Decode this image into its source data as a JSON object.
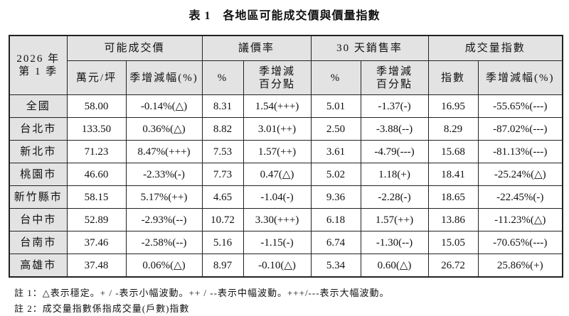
{
  "title": "表 1　各地區可能成交價與價量指數",
  "header": {
    "period": [
      "2026 年",
      "第 1 季"
    ],
    "groups": [
      "可能成交價",
      "議價率",
      "30 天銷售率",
      "成交量指數"
    ],
    "subs": [
      "萬元/坪",
      "季增減幅(%)",
      "%",
      [
        "季增減",
        "百分點"
      ],
      "%",
      [
        "季增減",
        "百分點"
      ],
      "指數",
      "季增減幅(%)"
    ]
  },
  "rows": [
    {
      "region": "全國",
      "cells": [
        "58.00",
        "-0.14%(△)",
        "8.31",
        "1.54(+++)",
        "5.01",
        "-1.37(-)",
        "16.95",
        "-55.65%(---)"
      ]
    },
    {
      "region": "台北市",
      "cells": [
        "133.50",
        "0.36%(△)",
        "8.82",
        "3.01(++)",
        "2.50",
        "-3.88(--)",
        "8.29",
        "-87.02%(---)"
      ]
    },
    {
      "region": "新北市",
      "cells": [
        "71.23",
        "8.47%(+++)",
        "7.53",
        "1.57(++)",
        "3.61",
        "-4.79(---)",
        "15.68",
        "-81.13%(---)"
      ]
    },
    {
      "region": "桃園市",
      "cells": [
        "46.60",
        "-2.33%(-)",
        "7.73",
        "0.47(△)",
        "5.02",
        "1.18(+)",
        "18.41",
        "-25.24%(△)"
      ]
    },
    {
      "region": "新竹縣市",
      "cells": [
        "58.15",
        "5.17%(++)",
        "4.65",
        "-1.04(-)",
        "9.36",
        "-2.28(-)",
        "18.65",
        "-22.45%(-)"
      ]
    },
    {
      "region": "台中市",
      "cells": [
        "52.89",
        "-2.93%(--)",
        "10.72",
        "3.30(+++)",
        "6.18",
        "1.57(++)",
        "13.86",
        "-11.23%(△)"
      ]
    },
    {
      "region": "台南市",
      "cells": [
        "37.46",
        "-2.58%(--)",
        "5.16",
        "-1.15(-)",
        "6.74",
        "-1.30(--)",
        "15.05",
        "-70.65%(---)"
      ]
    },
    {
      "region": "高雄市",
      "cells": [
        "37.48",
        "0.06%(△)",
        "8.97",
        "-0.10(△)",
        "5.34",
        "0.60(△)",
        "26.72",
        "25.86%(+)"
      ]
    }
  ],
  "notes": [
    "註 1：△表示穩定。+ / -表示小幅波動。++ / --表示中幅波動。+++/---表示大幅波動。",
    "註 2：成交量指數係指成交量(戶數)指數"
  ]
}
